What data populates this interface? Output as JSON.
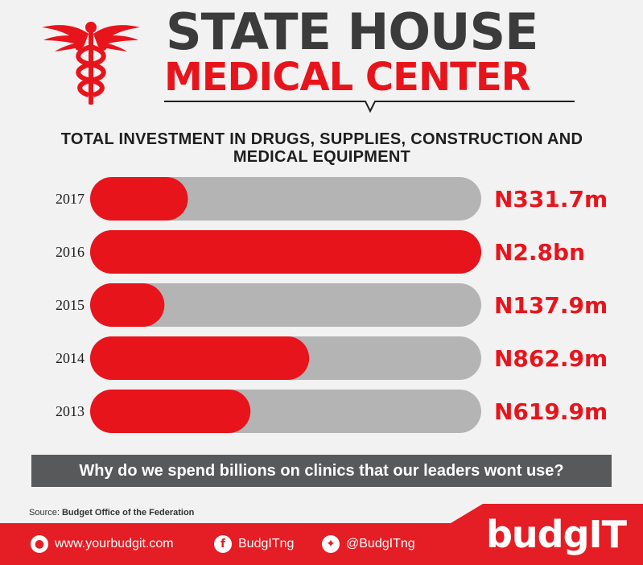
{
  "header": {
    "title_line1": "STATE HOUSE",
    "title_line2": "MEDICAL CENTER",
    "icon": "caduceus-icon"
  },
  "colors": {
    "accent": "#e8141c",
    "track": "#b4b4b4",
    "dark": "#3b3b3b",
    "question_bg": "#58595b",
    "footer_bg": "#e51d24"
  },
  "chart_data": {
    "type": "bar",
    "orientation": "horizontal",
    "title": "TOTAL INVESTMENT IN DRUGS, SUPPLIES, CONSTRUCTION AND MEDICAL EQUIPMENT",
    "categories": [
      "2017",
      "2016",
      "2015",
      "2014",
      "2013"
    ],
    "values": [
      331.7,
      2800,
      137.9,
      862.9,
      619.9
    ],
    "unit": "million Naira",
    "value_labels": [
      "N331.7m",
      "N2.8bn",
      "N137.9m",
      "N862.9m",
      "N619.9m"
    ],
    "fill_fraction": [
      0.25,
      1.0,
      0.19,
      0.56,
      0.41
    ]
  },
  "question": "Why do we spend billions on clinics that our leaders wont use?",
  "source": {
    "label": "Source:",
    "value": "Budget Office of the Federation"
  },
  "footer": {
    "website": "www.yourbudgit.com",
    "facebook": "BudgITng",
    "twitter": "@BudgITng",
    "website_icon": "globe-icon",
    "facebook_icon": "facebook-icon",
    "twitter_icon": "twitter-icon",
    "brand": "budgIT"
  }
}
